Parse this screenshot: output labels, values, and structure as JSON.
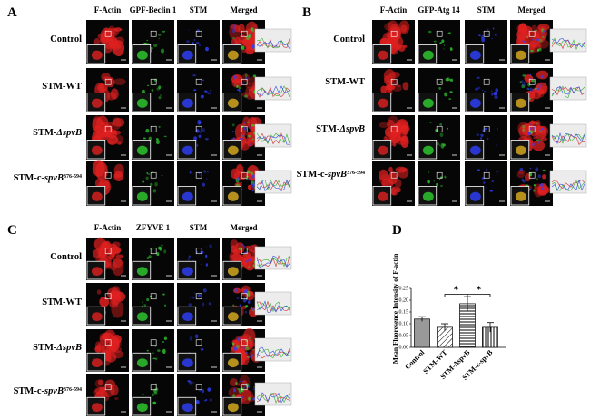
{
  "panel_a": {
    "label": "A",
    "columns": [
      "F-Actin",
      "GPF-Beclin 1",
      "STM",
      "Merged"
    ],
    "rows": [
      [
        "Control"
      ],
      [
        "STM-WT"
      ],
      [
        "STM-",
        "ΔspvB"
      ],
      [
        "STM-c-",
        "spvB",
        "376-594"
      ]
    ]
  },
  "panel_b": {
    "label": "B",
    "columns": [
      "F-Actin",
      "GFP-Atg 14",
      "STM",
      "Merged"
    ],
    "rows": [
      [
        "Control"
      ],
      [
        "STM-WT"
      ],
      [
        "STM-",
        "ΔspvB"
      ],
      [
        "STM-c-",
        "spvB",
        "376-594"
      ]
    ]
  },
  "panel_c": {
    "label": "C",
    "columns": [
      "F-Actin",
      "ZFYVE 1",
      "STM",
      "Merged"
    ],
    "rows": [
      [
        "Control"
      ],
      [
        "STM-WT"
      ],
      [
        "STM-",
        "ΔspvB"
      ],
      [
        "STM-c-",
        "spvB",
        "376-594"
      ]
    ]
  },
  "chart_data": {
    "type": "bar",
    "label": "D",
    "ylabel": "Mean Fluoresence Intensity of F-actin",
    "categories": [
      "Control",
      "STM-WT",
      "STM-ΔspvB",
      "STM-c-spvB"
    ],
    "values": [
      0.12,
      0.085,
      0.185,
      0.085
    ],
    "errors": [
      0.01,
      0.015,
      0.03,
      0.02
    ],
    "patterns": [
      "solid",
      "diagonal",
      "horizontal",
      "vertical"
    ],
    "color": "#999999",
    "ylim": [
      0,
      0.25
    ],
    "yticks": [
      {
        "value": 0,
        "label": "0.00"
      },
      {
        "value": 0.05,
        "label": "0.05"
      },
      {
        "value": 0.1,
        "label": "0.10"
      },
      {
        "value": 0.15,
        "label": "0.15"
      },
      {
        "value": 0.2,
        "label": "0.20"
      },
      {
        "value": 0.25,
        "label": "0.25"
      }
    ],
    "annotations": [
      "*",
      "*"
    ]
  }
}
